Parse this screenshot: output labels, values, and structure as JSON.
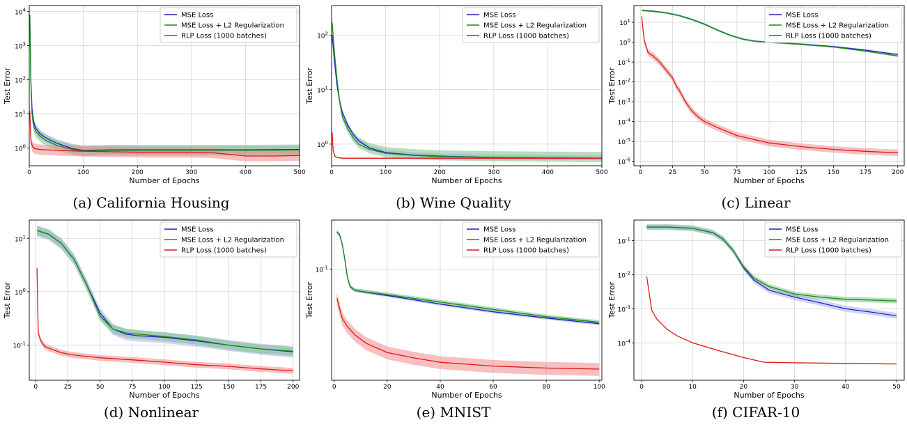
{
  "legend": {
    "mse": "MSE Loss",
    "mse_l2": "MSE Loss + L2 Regularization",
    "rlp": "RLP Loss (1000 batches)"
  },
  "colors": {
    "mse": "#1f1fc8",
    "mse_l2": "#1a8a1a",
    "rlp": "#e01818",
    "mse_band": "#aab0f0",
    "mse_l2_band": "#7fc08a",
    "rlp_band": "#f08a8a"
  },
  "chart_data": [
    {
      "type": "line",
      "yscale": "log",
      "grid": true,
      "legend_position": "top-right",
      "caption": "(a) California Housing",
      "xlabel": "Number of Epochs",
      "ylabel": "Test Error",
      "xlim": [
        0,
        500
      ],
      "ylim": [
        0.3,
        15000
      ],
      "xticks": [
        0,
        100,
        200,
        300,
        400,
        500
      ],
      "yticks": [
        1,
        10,
        100,
        1000,
        10000
      ],
      "series": [
        {
          "key": "mse",
          "name": "MSE Loss",
          "x": [
            1,
            3,
            5,
            8,
            12,
            20,
            30,
            50,
            80,
            100,
            150,
            200,
            300,
            400,
            500
          ],
          "y": [
            8000,
            100,
            15,
            6,
            3.8,
            2.6,
            2.0,
            1.4,
            0.95,
            0.85,
            0.88,
            0.88,
            0.88,
            0.88,
            0.9
          ],
          "band": [
            0.75,
            1.3
          ]
        },
        {
          "key": "mse_l2",
          "name": "MSE Loss + L2 Regularization",
          "x": [
            1,
            3,
            5,
            8,
            12,
            20,
            30,
            50,
            80,
            100,
            150,
            200,
            300,
            400,
            500
          ],
          "y": [
            7000,
            80,
            10,
            4.5,
            3.0,
            2.2,
            1.7,
            1.2,
            0.9,
            0.82,
            0.85,
            0.85,
            0.85,
            0.85,
            0.87
          ],
          "band": [
            0.7,
            1.45
          ]
        },
        {
          "key": "rlp",
          "name": "RLP Loss (1000 batches)",
          "x": [
            1,
            3,
            6,
            10,
            20,
            50,
            100,
            200,
            300,
            340,
            400,
            450,
            500
          ],
          "y": [
            12,
            1.6,
            1.1,
            0.95,
            0.9,
            0.85,
            0.8,
            0.75,
            0.75,
            0.72,
            0.58,
            0.58,
            0.6
          ],
          "band": [
            0.7,
            1.4
          ]
        }
      ]
    },
    {
      "type": "line",
      "yscale": "log",
      "grid": true,
      "legend_position": "top-right",
      "caption": "(b) Wine Quality",
      "xlabel": "Number of Epochs",
      "ylabel": "Test Error",
      "xlim": [
        0,
        500
      ],
      "ylim": [
        0.4,
        350
      ],
      "xticks": [
        0,
        100,
        200,
        300,
        400,
        500
      ],
      "yticks": [
        1,
        10,
        100
      ],
      "series": [
        {
          "key": "mse",
          "name": "MSE Loss",
          "x": [
            1,
            5,
            10,
            15,
            20,
            30,
            40,
            50,
            70,
            100,
            150,
            200,
            300,
            400,
            500
          ],
          "y": [
            100,
            35,
            12,
            6,
            3.8,
            2.2,
            1.5,
            1.15,
            0.85,
            0.7,
            0.63,
            0.6,
            0.57,
            0.56,
            0.55
          ],
          "band": [
            0.92,
            1.12
          ]
        },
        {
          "key": "mse_l2",
          "name": "MSE Loss + L2 Regularization",
          "x": [
            1,
            5,
            10,
            15,
            20,
            30,
            40,
            50,
            70,
            100,
            150,
            200,
            300,
            400,
            500
          ],
          "y": [
            170,
            50,
            15,
            6,
            3.2,
            1.9,
            1.3,
            1.0,
            0.8,
            0.68,
            0.62,
            0.59,
            0.57,
            0.56,
            0.55
          ],
          "band": [
            0.85,
            1.3
          ]
        },
        {
          "key": "rlp",
          "name": "RLP Loss (1000 batches)",
          "x": [
            1,
            3,
            6,
            10,
            20,
            50,
            100,
            200,
            300,
            400,
            500
          ],
          "y": [
            1.65,
            0.75,
            0.6,
            0.57,
            0.55,
            0.55,
            0.55,
            0.55,
            0.55,
            0.55,
            0.55
          ],
          "band": [
            0.97,
            1.03
          ]
        }
      ]
    },
    {
      "type": "line",
      "yscale": "log",
      "grid": true,
      "legend_position": "top-right",
      "caption": "(c) Linear",
      "xlabel": "Number of Epochs",
      "ylabel": "Test Error",
      "xlim": [
        -5,
        205
      ],
      "ylim": [
        6e-07,
        70
      ],
      "xticks": [
        0,
        25,
        50,
        75,
        100,
        125,
        150,
        175,
        200
      ],
      "yticks": [
        1e-06,
        1e-05,
        0.0001,
        0.001,
        0.01,
        0.1,
        1,
        10
      ],
      "series": [
        {
          "key": "mse",
          "name": "MSE Loss",
          "x": [
            1,
            10,
            20,
            30,
            40,
            50,
            60,
            70,
            80,
            90,
            100,
            125,
            150,
            175,
            200
          ],
          "y": [
            40,
            36,
            30,
            22,
            14,
            8,
            4,
            2.2,
            1.4,
            1.1,
            1.0,
            0.8,
            0.6,
            0.4,
            0.24
          ],
          "band": [
            0.9,
            1.12
          ]
        },
        {
          "key": "mse_l2",
          "name": "MSE Loss + L2 Regularization",
          "x": [
            1,
            10,
            20,
            30,
            40,
            50,
            60,
            70,
            80,
            90,
            100,
            125,
            150,
            175,
            200
          ],
          "y": [
            40,
            36,
            30,
            22,
            14,
            8,
            4,
            2.2,
            1.4,
            1.1,
            1.0,
            0.78,
            0.58,
            0.36,
            0.2
          ],
          "band": [
            0.9,
            1.12
          ]
        },
        {
          "key": "rlp",
          "name": "RLP Loss (1000 batches)",
          "x": [
            1,
            3,
            6,
            10,
            15,
            20,
            25,
            28,
            30,
            35,
            40,
            45,
            50,
            60,
            75,
            100,
            125,
            150,
            175,
            200
          ],
          "y": [
            20,
            1.2,
            0.3,
            0.2,
            0.1,
            0.04,
            0.016,
            0.006,
            0.004,
            0.001,
            0.00035,
            0.00017,
            0.0001,
            5e-05,
            2e-05,
            8.5e-06,
            5.5e-06,
            4e-06,
            3.2e-06,
            2.7e-06
          ],
          "band": [
            0.68,
            1.45
          ]
        }
      ]
    },
    {
      "type": "line",
      "yscale": "log",
      "grid": true,
      "legend_position": "top-right",
      "caption": "(d) Nonlinear",
      "xlabel": "Number of Epochs",
      "ylabel": "Test Error",
      "xlim": [
        -5,
        205
      ],
      "ylim": [
        0.022,
        22
      ],
      "xticks": [
        0,
        25,
        50,
        75,
        100,
        125,
        150,
        175,
        200
      ],
      "yticks": [
        0.1,
        1,
        10
      ],
      "series": [
        {
          "key": "mse",
          "name": "MSE Loss",
          "x": [
            1,
            10,
            20,
            30,
            40,
            50,
            60,
            70,
            80,
            100,
            125,
            150,
            175,
            200
          ],
          "y": [
            14,
            12,
            8,
            4,
            1.3,
            0.4,
            0.2,
            0.16,
            0.15,
            0.14,
            0.12,
            0.1,
            0.085,
            0.075
          ],
          "band": [
            0.78,
            1.25
          ]
        },
        {
          "key": "mse_l2",
          "name": "MSE Loss + L2 Regularization",
          "x": [
            1,
            10,
            20,
            30,
            40,
            50,
            60,
            70,
            80,
            100,
            125,
            150,
            175,
            200
          ],
          "y": [
            14,
            12,
            8,
            4,
            1.3,
            0.35,
            0.2,
            0.17,
            0.16,
            0.145,
            0.125,
            0.1,
            0.085,
            0.077
          ],
          "band": [
            0.82,
            1.2
          ]
        },
        {
          "key": "rlp",
          "name": "RLP Loss (1000 batches)",
          "x": [
            1,
            2,
            4,
            7,
            10,
            20,
            30,
            50,
            75,
            100,
            125,
            150,
            175,
            200
          ],
          "y": [
            2.8,
            0.17,
            0.12,
            0.095,
            0.088,
            0.072,
            0.065,
            0.058,
            0.053,
            0.048,
            0.043,
            0.04,
            0.036,
            0.033
          ],
          "band": [
            0.88,
            1.13
          ]
        }
      ]
    },
    {
      "type": "line",
      "yscale": "log",
      "grid": true,
      "legend_position": "top-right",
      "caption": "(e) MNIST",
      "xlabel": "Number of Epochs",
      "ylabel": "Test Error",
      "xlim": [
        -1,
        101
      ],
      "ylim": [
        0.0125,
        0.25
      ],
      "xticks": [
        0,
        20,
        40,
        60,
        80,
        100
      ],
      "yticks": [
        0.1
      ],
      "series": [
        {
          "key": "mse",
          "name": "MSE Loss",
          "x": [
            1,
            2,
            3,
            4,
            5,
            6,
            7,
            8,
            10,
            20,
            40,
            60,
            80,
            100
          ],
          "y": [
            0.2,
            0.19,
            0.16,
            0.12,
            0.085,
            0.072,
            0.069,
            0.067,
            0.066,
            0.061,
            0.052,
            0.045,
            0.04,
            0.036
          ],
          "band": [
            0.97,
            1.04
          ]
        },
        {
          "key": "mse_l2",
          "name": "MSE Loss + L2 Regularization",
          "x": [
            1,
            2,
            3,
            4,
            5,
            6,
            7,
            8,
            10,
            20,
            40,
            60,
            80,
            100
          ],
          "y": [
            0.2,
            0.19,
            0.16,
            0.12,
            0.085,
            0.072,
            0.069,
            0.067,
            0.066,
            0.062,
            0.054,
            0.047,
            0.041,
            0.037
          ],
          "band": [
            0.97,
            1.04
          ]
        },
        {
          "key": "rlp",
          "name": "RLP Loss (1000 batches)",
          "x": [
            1,
            3,
            5,
            8,
            12,
            20,
            30,
            40,
            60,
            80,
            100
          ],
          "y": [
            0.058,
            0.04,
            0.034,
            0.029,
            0.025,
            0.021,
            0.019,
            0.0175,
            0.0163,
            0.0157,
            0.0154
          ],
          "band": [
            0.88,
            1.12
          ]
        }
      ]
    },
    {
      "type": "line",
      "yscale": "log",
      "grid": true,
      "legend_position": "top-right",
      "caption": "(f) CIFAR-10",
      "xlabel": "Number of Epochs",
      "ylabel": "Test Error",
      "xlim": [
        -1.5,
        51.5
      ],
      "ylim": [
        8e-06,
        0.4
      ],
      "xticks": [
        0,
        10,
        20,
        30,
        40,
        50
      ],
      "yticks": [
        0.0001,
        0.001,
        0.01,
        0.1
      ],
      "series": [
        {
          "key": "mse",
          "name": "MSE Loss",
          "x": [
            1,
            5,
            10,
            14,
            16,
            18,
            20,
            22,
            25,
            30,
            35,
            40,
            45,
            50
          ],
          "y": [
            0.25,
            0.25,
            0.23,
            0.17,
            0.11,
            0.05,
            0.016,
            0.007,
            0.0035,
            0.0022,
            0.0015,
            0.001,
            0.0008,
            0.00062
          ],
          "band": [
            0.82,
            1.22
          ]
        },
        {
          "key": "mse_l2",
          "name": "MSE Loss + L2 Regularization",
          "x": [
            1,
            5,
            10,
            14,
            16,
            18,
            20,
            22,
            25,
            30,
            35,
            40,
            45,
            50
          ],
          "y": [
            0.25,
            0.25,
            0.23,
            0.17,
            0.11,
            0.05,
            0.017,
            0.008,
            0.0045,
            0.0027,
            0.0022,
            0.0019,
            0.0018,
            0.0017
          ],
          "band": [
            0.85,
            1.18
          ]
        },
        {
          "key": "rlp",
          "name": "RLP Loss (1000 batches)",
          "x": [
            1,
            2,
            3,
            5,
            7,
            10,
            15,
            20,
            24,
            30,
            40,
            50
          ],
          "y": [
            0.009,
            0.0009,
            0.0005,
            0.00025,
            0.00016,
            0.0001,
            6e-05,
            3.7e-05,
            2.7e-05,
            2.6e-05,
            2.5e-05,
            2.4e-05
          ],
          "band": [
            0.97,
            1.03
          ]
        }
      ]
    }
  ]
}
